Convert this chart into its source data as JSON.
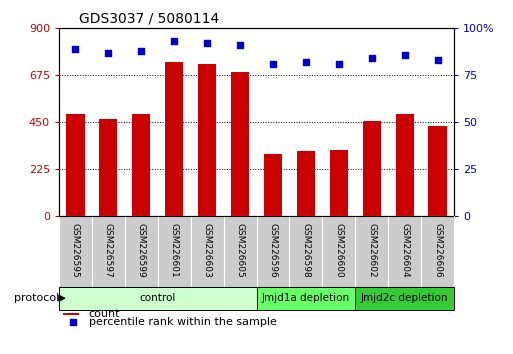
{
  "title": "GDS3037 / 5080114",
  "samples": [
    "GSM226595",
    "GSM226597",
    "GSM226599",
    "GSM226601",
    "GSM226603",
    "GSM226605",
    "GSM226596",
    "GSM226598",
    "GSM226600",
    "GSM226602",
    "GSM226604",
    "GSM226606"
  ],
  "counts": [
    490,
    465,
    487,
    740,
    730,
    690,
    295,
    310,
    315,
    455,
    490,
    430
  ],
  "percentile_ranks": [
    89,
    87,
    88,
    93,
    92,
    91,
    81,
    82,
    81,
    84,
    86,
    83
  ],
  "left_ylim": [
    0,
    900
  ],
  "left_yticks": [
    0,
    225,
    450,
    675,
    900
  ],
  "right_ylim": [
    0,
    100
  ],
  "right_yticks": [
    0,
    25,
    50,
    75,
    100
  ],
  "bar_color": "#cc0000",
  "dot_color": "#0000cc",
  "group_configs": [
    {
      "span": [
        0,
        5
      ],
      "color": "#ccffcc",
      "label": "control"
    },
    {
      "span": [
        6,
        8
      ],
      "color": "#66ff66",
      "label": "Jmjd1a depletion"
    },
    {
      "span": [
        9,
        11
      ],
      "color": "#33cc33",
      "label": "Jmjd2c depletion"
    }
  ],
  "protocol_label": "protocol",
  "legend_count_label": "count",
  "legend_pct_label": "percentile rank within the sample",
  "grid_yticks": [
    225,
    450,
    675
  ],
  "label_bg": "#cccccc",
  "label_border": "#aaaaaa"
}
